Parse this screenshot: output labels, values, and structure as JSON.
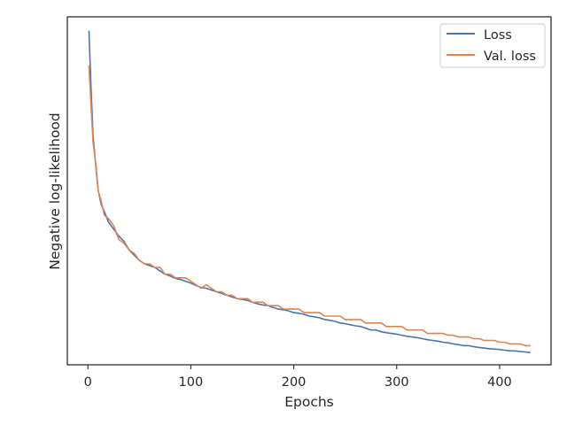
{
  "chart_data": {
    "type": "line",
    "xlabel": "Epochs",
    "ylabel": "Negative log-likelihood",
    "xlim": [
      -20,
      450
    ],
    "ylim": [
      0,
      1
    ],
    "x_ticks": [
      0,
      100,
      200,
      300,
      400
    ],
    "y_ticks_visible": false,
    "y_scale_note": "y tick labels not shown; values are relative (0 = bottom, 1 = top of axes)",
    "grid": false,
    "legend_position": "top-right",
    "legend": [
      "Loss",
      "Val. loss"
    ],
    "series": [
      {
        "name": "Loss",
        "color": "#4c72b0",
        "x": [
          1,
          3,
          5,
          8,
          10,
          13,
          16,
          20,
          25,
          30,
          35,
          40,
          45,
          50,
          55,
          60,
          65,
          70,
          75,
          80,
          85,
          90,
          95,
          100,
          105,
          110,
          115,
          120,
          125,
          130,
          135,
          140,
          145,
          150,
          155,
          160,
          165,
          170,
          175,
          180,
          185,
          190,
          195,
          200,
          205,
          210,
          215,
          220,
          225,
          230,
          235,
          240,
          245,
          250,
          255,
          260,
          265,
          270,
          275,
          280,
          285,
          290,
          295,
          300,
          305,
          310,
          315,
          320,
          325,
          330,
          335,
          340,
          345,
          350,
          355,
          360,
          365,
          370,
          375,
          380,
          385,
          390,
          395,
          400,
          405,
          410,
          415,
          420,
          425,
          430
        ],
        "y": [
          0.96,
          0.8,
          0.66,
          0.56,
          0.5,
          0.46,
          0.44,
          0.41,
          0.39,
          0.37,
          0.355,
          0.33,
          0.315,
          0.3,
          0.29,
          0.285,
          0.28,
          0.27,
          0.26,
          0.255,
          0.248,
          0.245,
          0.24,
          0.235,
          0.228,
          0.222,
          0.22,
          0.215,
          0.21,
          0.205,
          0.2,
          0.195,
          0.19,
          0.188,
          0.185,
          0.18,
          0.175,
          0.172,
          0.17,
          0.165,
          0.16,
          0.158,
          0.155,
          0.15,
          0.148,
          0.145,
          0.14,
          0.138,
          0.135,
          0.13,
          0.128,
          0.125,
          0.12,
          0.118,
          0.115,
          0.112,
          0.11,
          0.105,
          0.1,
          0.1,
          0.095,
          0.092,
          0.09,
          0.088,
          0.085,
          0.082,
          0.08,
          0.078,
          0.075,
          0.072,
          0.07,
          0.068,
          0.065,
          0.063,
          0.06,
          0.058,
          0.055,
          0.055,
          0.052,
          0.05,
          0.048,
          0.046,
          0.045,
          0.044,
          0.042,
          0.04,
          0.04,
          0.038,
          0.037,
          0.035
        ]
      },
      {
        "name": "Val. loss",
        "color": "#dd8452",
        "x": [
          1,
          3,
          5,
          8,
          10,
          13,
          16,
          20,
          25,
          30,
          35,
          40,
          45,
          50,
          55,
          60,
          65,
          70,
          75,
          80,
          85,
          90,
          95,
          100,
          105,
          110,
          115,
          120,
          125,
          130,
          135,
          140,
          145,
          150,
          155,
          160,
          165,
          170,
          175,
          180,
          185,
          190,
          195,
          200,
          205,
          210,
          215,
          220,
          225,
          230,
          235,
          240,
          245,
          250,
          255,
          260,
          265,
          270,
          275,
          280,
          285,
          290,
          295,
          300,
          305,
          310,
          315,
          320,
          325,
          330,
          335,
          340,
          345,
          350,
          355,
          360,
          365,
          370,
          375,
          380,
          385,
          390,
          395,
          400,
          405,
          410,
          415,
          420,
          425,
          430
        ],
        "y": [
          0.86,
          0.75,
          0.64,
          0.57,
          0.5,
          0.47,
          0.43,
          0.42,
          0.4,
          0.36,
          0.35,
          0.33,
          0.32,
          0.3,
          0.29,
          0.29,
          0.28,
          0.28,
          0.26,
          0.26,
          0.25,
          0.25,
          0.25,
          0.24,
          0.23,
          0.22,
          0.23,
          0.22,
          0.21,
          0.21,
          0.2,
          0.2,
          0.19,
          0.19,
          0.19,
          0.18,
          0.18,
          0.18,
          0.17,
          0.17,
          0.17,
          0.16,
          0.16,
          0.16,
          0.16,
          0.15,
          0.15,
          0.15,
          0.15,
          0.14,
          0.14,
          0.14,
          0.14,
          0.13,
          0.13,
          0.13,
          0.13,
          0.12,
          0.12,
          0.12,
          0.12,
          0.11,
          0.11,
          0.11,
          0.11,
          0.1,
          0.1,
          0.1,
          0.1,
          0.09,
          0.09,
          0.09,
          0.09,
          0.085,
          0.085,
          0.08,
          0.08,
          0.08,
          0.075,
          0.075,
          0.07,
          0.07,
          0.07,
          0.065,
          0.065,
          0.06,
          0.06,
          0.06,
          0.055,
          0.055
        ]
      }
    ]
  }
}
